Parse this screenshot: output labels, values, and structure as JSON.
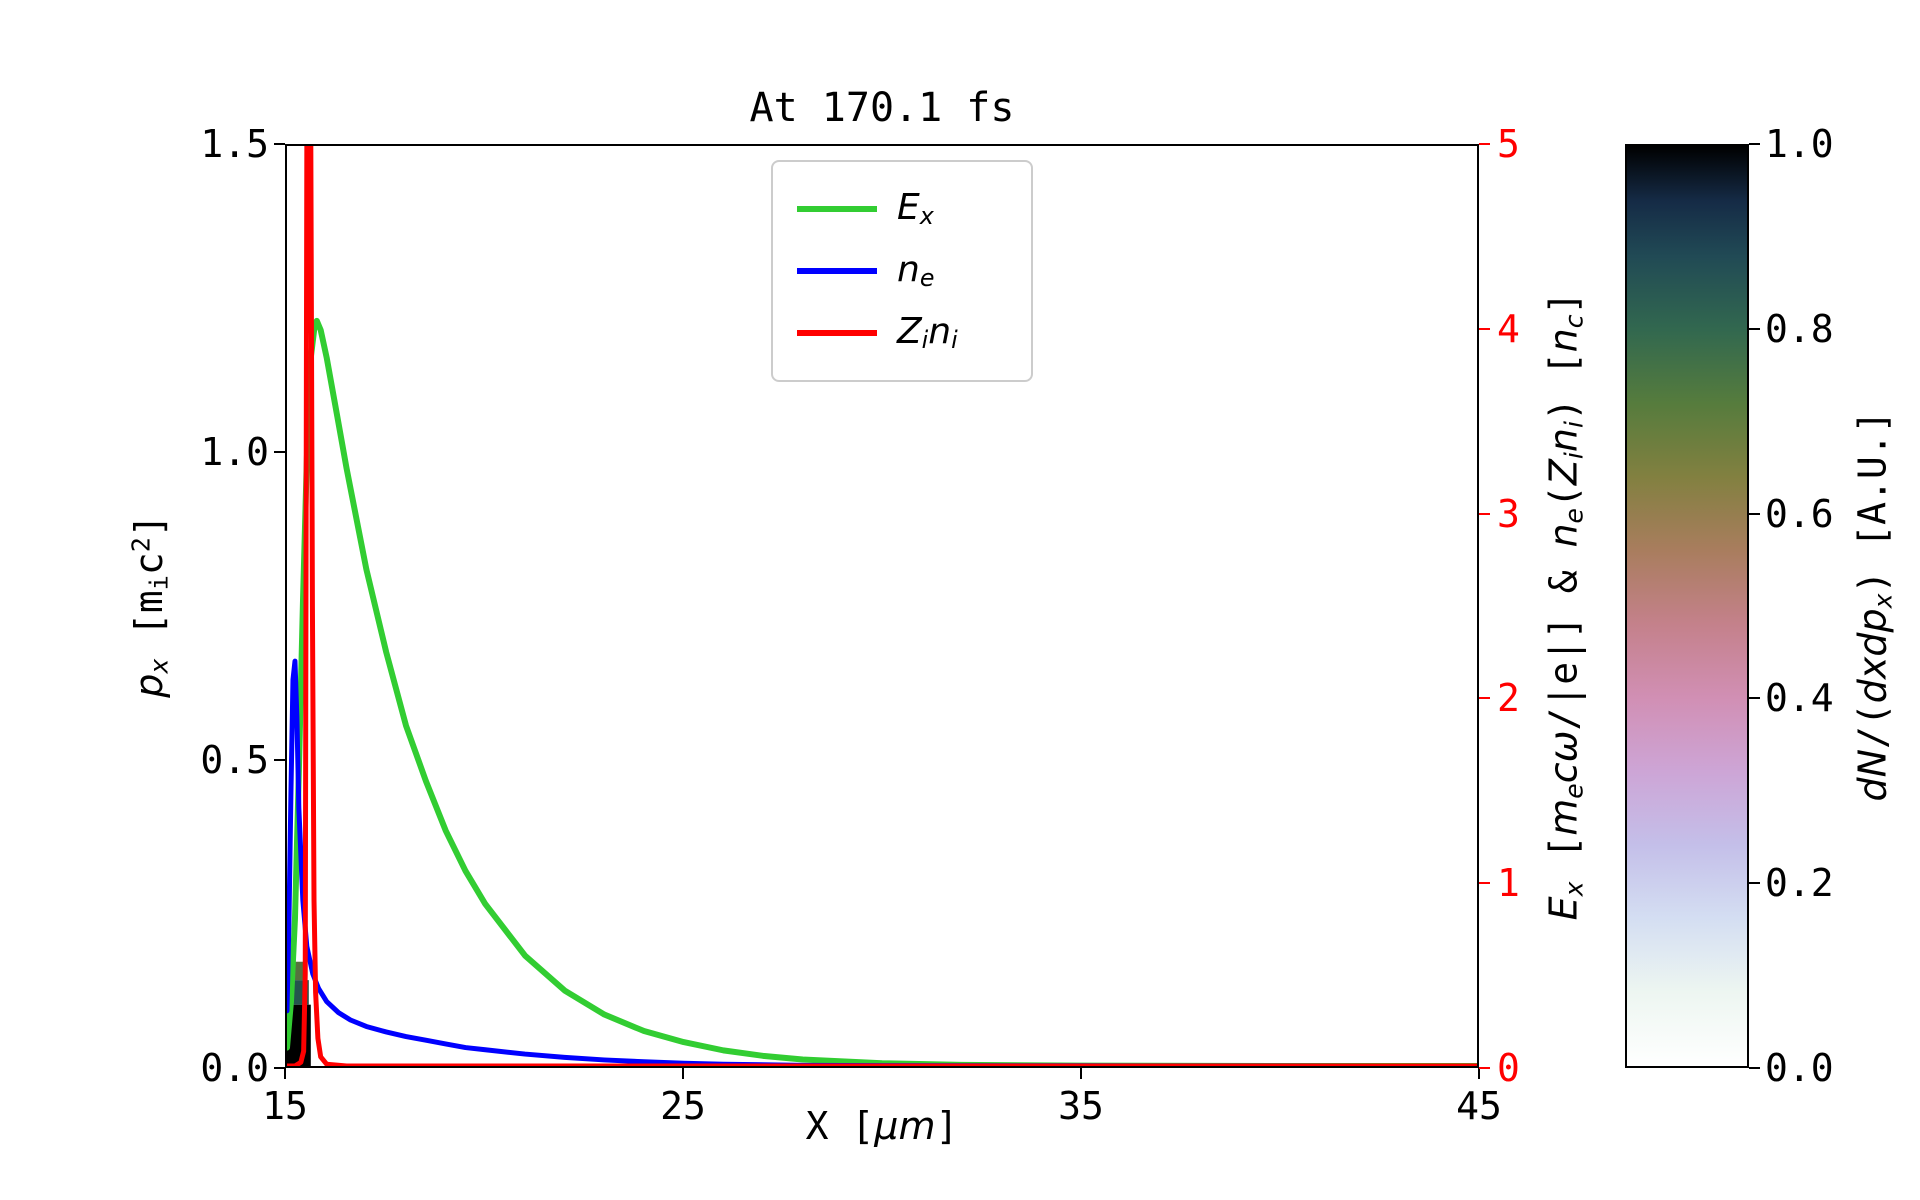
{
  "figure": {
    "title": "At 170.1 fs",
    "background": "#ffffff"
  },
  "axes": {
    "x": {
      "label_segments": [
        [
          "X [",
          "n"
        ],
        [
          "μ",
          "i"
        ],
        [
          "m",
          "i"
        ],
        [
          "]",
          "n"
        ]
      ],
      "tick_labels": [
        "15",
        "25",
        "35",
        "45"
      ],
      "range": [
        15,
        45
      ],
      "color": "#000000"
    },
    "y_left": {
      "label_segments": [
        [
          "p",
          "i"
        ],
        [
          "x",
          "isub"
        ],
        [
          " [m",
          "n"
        ],
        [
          "i",
          "sub"
        ],
        [
          "c",
          "n"
        ],
        [
          "2",
          "sup"
        ],
        [
          "]",
          "n"
        ]
      ],
      "tick_labels": [
        "0.0",
        "0.5",
        "1.0",
        "1.5"
      ],
      "range": [
        0,
        1.5
      ],
      "color": "#000000"
    },
    "y_right": {
      "label_segments": [
        [
          "E",
          "i"
        ],
        [
          "x",
          "isub"
        ],
        [
          " [",
          "n"
        ],
        [
          "m",
          "i"
        ],
        [
          "e",
          "isub"
        ],
        [
          "c",
          "i"
        ],
        [
          "ω",
          "i"
        ],
        [
          "/|e|] & ",
          "n"
        ],
        [
          "n",
          "i"
        ],
        [
          "e",
          "isub"
        ],
        [
          "(",
          "n"
        ],
        [
          "Z",
          "i"
        ],
        [
          "i",
          "isub"
        ],
        [
          "n",
          "i"
        ],
        [
          "i",
          "isub"
        ],
        [
          ") [",
          "n"
        ],
        [
          "n",
          "i"
        ],
        [
          "c",
          "isub"
        ],
        [
          "]",
          "n"
        ]
      ],
      "tick_labels": [
        "0",
        "1",
        "2",
        "3",
        "4",
        "5"
      ],
      "range": [
        0,
        5
      ],
      "color": "#ff0000"
    }
  },
  "legend": {
    "entries": [
      {
        "label_segments": [
          [
            "E",
            "i"
          ],
          [
            "x",
            "isub"
          ]
        ],
        "color": "#32cd32"
      },
      {
        "label_segments": [
          [
            "n",
            "i"
          ],
          [
            "e",
            "isub"
          ]
        ],
        "color": "#0000ff"
      },
      {
        "label_segments": [
          [
            "Z",
            "i"
          ],
          [
            "i",
            "isub"
          ],
          [
            "n",
            "i"
          ],
          [
            "i",
            "isub"
          ]
        ],
        "color": "#ff0000"
      }
    ]
  },
  "colorbar": {
    "tick_labels": [
      "0.0",
      "0.2",
      "0.4",
      "0.6",
      "0.8",
      "1.0"
    ],
    "label_segments": [
      [
        "d",
        "i"
      ],
      [
        "N",
        "i"
      ],
      [
        "/(",
        "n"
      ],
      [
        "d",
        "i"
      ],
      [
        "x",
        "i"
      ],
      [
        "d",
        "i"
      ],
      [
        "p",
        "i"
      ],
      [
        "x",
        "isub"
      ],
      [
        ") [A.U.]",
        "n"
      ]
    ],
    "stops": [
      [
        0,
        "#ffffff"
      ],
      [
        0.08,
        "#edf6f1"
      ],
      [
        0.16,
        "#d4def2"
      ],
      [
        0.24,
        "#c4bfe9"
      ],
      [
        0.32,
        "#cda5d6"
      ],
      [
        0.4,
        "#d18fb4"
      ],
      [
        0.48,
        "#c4818b"
      ],
      [
        0.56,
        "#a97d5e"
      ],
      [
        0.64,
        "#828040"
      ],
      [
        0.72,
        "#567c3d"
      ],
      [
        0.8,
        "#32684f"
      ],
      [
        0.88,
        "#214a55"
      ],
      [
        0.94,
        "#152b46"
      ],
      [
        1,
        "#000000"
      ]
    ]
  },
  "chart_data": {
    "type": "line",
    "title": "At 170.1 fs",
    "xlabel": "X [um]",
    "ylabel_left": "p_x [m_i c^2]",
    "ylabel_right": "E_x [m_e c w/|e|] & n_e(Z_i n_i) [n_c]",
    "xlim": [
      15,
      45
    ],
    "ylim_left": [
      0,
      1.5
    ],
    "ylim_right": [
      0,
      5
    ],
    "x_ticks": [
      15,
      25,
      35,
      45
    ],
    "y_left_ticks": [
      0.0,
      0.5,
      1.0,
      1.5
    ],
    "y_right_ticks": [
      0,
      1,
      2,
      3,
      4,
      5
    ],
    "grid": false,
    "legend_position": "upper center",
    "series": [
      {
        "name": "E_x",
        "axis": "right",
        "color": "#32cd32",
        "lw": 6,
        "x": [
          15.0,
          15.1,
          15.2,
          15.3,
          15.4,
          15.5,
          15.6,
          15.7,
          15.75,
          15.85,
          16.0,
          16.25,
          16.5,
          17.0,
          17.5,
          18.0,
          18.5,
          19.0,
          19.5,
          20.0,
          21.0,
          22.0,
          23.0,
          24.0,
          25.0,
          26.0,
          27.0,
          28.0,
          30.0,
          32.0,
          35.0,
          40.0,
          45.0
        ],
        "y": [
          0.1,
          0.35,
          0.8,
          1.6,
          2.5,
          3.3,
          3.85,
          4.03,
          4.05,
          4.0,
          3.85,
          3.55,
          3.25,
          2.7,
          2.25,
          1.85,
          1.55,
          1.28,
          1.06,
          0.88,
          0.6,
          0.41,
          0.28,
          0.19,
          0.13,
          0.085,
          0.055,
          0.035,
          0.015,
          0.006,
          0.002,
          0.0,
          0.0
        ]
      },
      {
        "name": "n_e",
        "axis": "right",
        "color": "#0000ff",
        "lw": 5,
        "x": [
          15.0,
          15.05,
          15.1,
          15.15,
          15.2,
          15.25,
          15.3,
          15.4,
          15.5,
          15.65,
          15.8,
          16.0,
          16.3,
          16.6,
          17.0,
          17.5,
          18.0,
          18.5,
          19.0,
          19.5,
          20.0,
          21.0,
          22.0,
          23.0,
          24.0,
          25.0,
          26.0,
          28.0,
          30.0,
          35.0,
          45.0
        ],
        "y": [
          0.3,
          0.8,
          1.5,
          2.1,
          2.2,
          1.9,
          1.4,
          0.9,
          0.65,
          0.5,
          0.42,
          0.35,
          0.29,
          0.25,
          0.215,
          0.185,
          0.16,
          0.14,
          0.12,
          0.1,
          0.088,
          0.065,
          0.047,
          0.033,
          0.023,
          0.015,
          0.01,
          0.004,
          0.002,
          0.001,
          0.0
        ]
      },
      {
        "name": "Z_i n_i",
        "axis": "right",
        "color": "#ff0000",
        "lw": 5,
        "x": [
          15.0,
          15.2,
          15.35,
          15.42,
          15.46,
          15.5,
          15.6,
          15.64,
          15.68,
          15.72,
          15.78,
          15.85,
          16.0,
          16.5,
          17.0,
          20.0,
          30.0,
          45.0
        ],
        "y": [
          0.0,
          0.0,
          0.02,
          0.08,
          0.5,
          5.3,
          5.3,
          2.5,
          0.9,
          0.4,
          0.15,
          0.05,
          0.01,
          0.0,
          0.0,
          0.0,
          0.0,
          0.0
        ]
      }
    ],
    "phase_space": {
      "axis": "left",
      "colormap": "cubehelix_r",
      "value_range": [
        0,
        1
      ],
      "blobs": [
        {
          "x0": 15.0,
          "x1": 15.6,
          "p0": 0.0,
          "p1": 0.1,
          "value": 1.0,
          "color": "#000000"
        },
        {
          "x0": 15.0,
          "x1": 15.55,
          "p0": 0.1,
          "p1": 0.14,
          "value": 0.8,
          "color": "#24554d"
        },
        {
          "x0": 15.0,
          "x1": 15.5,
          "p0": 0.14,
          "p1": 0.17,
          "value": 0.6,
          "color": "#56713f"
        }
      ]
    },
    "colorbar": {
      "min": 0,
      "max": 1,
      "ticks": [
        0.0,
        0.2,
        0.4,
        0.6,
        0.8,
        1.0
      ],
      "label": "dN/(dxdp_x) [A.U.]",
      "colormap": "cubehelix_r"
    }
  }
}
